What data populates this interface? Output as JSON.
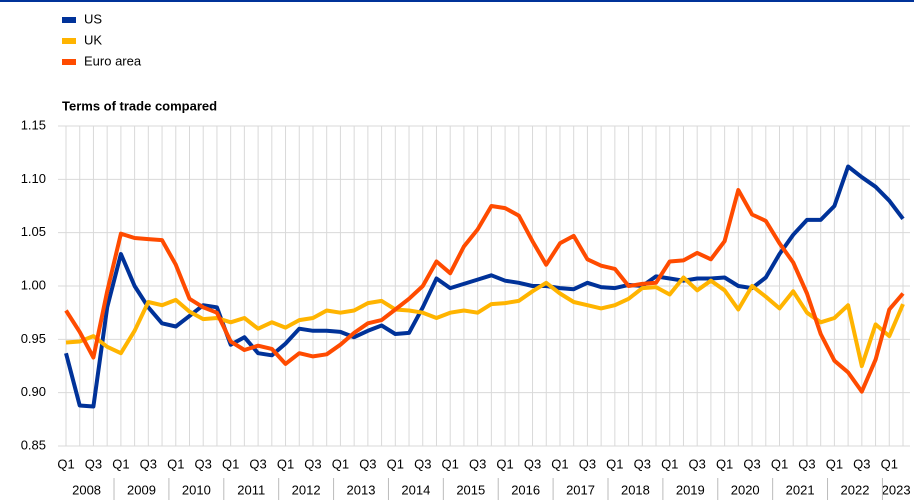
{
  "chart_data": {
    "type": "line",
    "title": "Terms of trade compared",
    "categories": [
      "Q1",
      null,
      "Q3",
      null,
      "Q1",
      null,
      "Q3",
      null,
      "Q1",
      null,
      "Q3",
      null,
      "Q1",
      null,
      "Q3",
      null,
      "Q1",
      null,
      "Q3",
      null,
      "Q1",
      null,
      "Q3",
      null,
      "Q1",
      null,
      "Q3",
      null,
      "Q1",
      null,
      "Q3",
      null,
      "Q1",
      null,
      "Q3",
      null,
      "Q1",
      null,
      "Q3",
      null,
      "Q1",
      null,
      "Q3",
      null,
      "Q1",
      null,
      "Q3",
      null,
      "Q1",
      null,
      "Q3",
      null,
      "Q1",
      null,
      "Q3",
      null,
      "Q1",
      null,
      "Q3",
      null,
      "Q1",
      null
    ],
    "year_labels": [
      "2008",
      "2009",
      "2010",
      "2011",
      "2012",
      "2013",
      "2014",
      "2015",
      "2016",
      "2017",
      "2018",
      "2019",
      "2020",
      "2021",
      "2022",
      "2023"
    ],
    "series": [
      {
        "name": "US",
        "color": "#003299",
        "values": [
          0.937,
          0.888,
          0.887,
          0.98,
          1.03,
          1.0,
          0.98,
          0.965,
          0.962,
          0.972,
          0.982,
          0.98,
          0.945,
          0.952,
          0.937,
          0.935,
          0.946,
          0.96,
          0.958,
          0.958,
          0.957,
          0.952,
          0.958,
          0.963,
          0.955,
          0.956,
          0.98,
          1.007,
          0.998,
          1.002,
          1.006,
          1.01,
          1.005,
          1.003,
          1.0,
          1.0,
          0.998,
          0.997,
          1.003,
          0.999,
          0.998,
          1.001,
          1.0,
          1.009,
          1.007,
          1.005,
          1.007,
          1.007,
          1.008,
          1.0,
          0.998,
          1.008,
          1.03,
          1.048,
          1.062,
          1.062,
          1.075,
          1.112,
          1.102,
          1.093,
          1.08,
          1.063
        ]
      },
      {
        "name": "UK",
        "color": "#ffb400",
        "values": [
          0.947,
          0.948,
          0.953,
          0.943,
          0.937,
          0.958,
          0.985,
          0.982,
          0.987,
          0.976,
          0.969,
          0.97,
          0.966,
          0.97,
          0.96,
          0.966,
          0.961,
          0.968,
          0.97,
          0.977,
          0.975,
          0.977,
          0.984,
          0.986,
          0.978,
          0.977,
          0.975,
          0.97,
          0.975,
          0.977,
          0.975,
          0.983,
          0.984,
          0.986,
          0.995,
          1.003,
          0.993,
          0.985,
          0.982,
          0.979,
          0.982,
          0.988,
          0.998,
          0.999,
          0.992,
          1.008,
          0.996,
          1.005,
          0.996,
          0.978,
          1.0,
          0.99,
          0.979,
          0.995,
          0.975,
          0.966,
          0.97,
          0.982,
          0.925,
          0.964,
          0.953,
          0.983
        ]
      },
      {
        "name": "Euro area",
        "color": "#ff4b00",
        "values": [
          0.977,
          0.957,
          0.933,
          0.995,
          1.049,
          1.045,
          1.044,
          1.043,
          1.02,
          0.988,
          0.98,
          0.975,
          0.948,
          0.94,
          0.944,
          0.941,
          0.927,
          0.937,
          0.934,
          0.936,
          0.945,
          0.956,
          0.965,
          0.968,
          0.978,
          0.988,
          1.0,
          1.023,
          1.012,
          1.037,
          1.053,
          1.075,
          1.073,
          1.066,
          1.042,
          1.02,
          1.04,
          1.047,
          1.025,
          1.019,
          1.016,
          1.0,
          1.002,
          1.003,
          1.023,
          1.024,
          1.031,
          1.025,
          1.042,
          1.09,
          1.067,
          1.061,
          1.04,
          1.022,
          0.993,
          0.955,
          0.93,
          0.919,
          0.901,
          0.931,
          0.978,
          0.993
        ]
      }
    ],
    "ylim": [
      0.85,
      1.15
    ],
    "yticks": [
      {
        "value": 0.85,
        "label": "0.85"
      },
      {
        "value": 0.9,
        "label": "0.90"
      },
      {
        "value": 0.95,
        "label": "0.95"
      },
      {
        "value": 1.0,
        "label": "1.00"
      },
      {
        "value": 1.05,
        "label": "1.05"
      },
      {
        "value": 1.1,
        "label": "1.10"
      },
      {
        "value": 1.15,
        "label": "1.15"
      }
    ],
    "grid": true,
    "legend": "top-left"
  }
}
